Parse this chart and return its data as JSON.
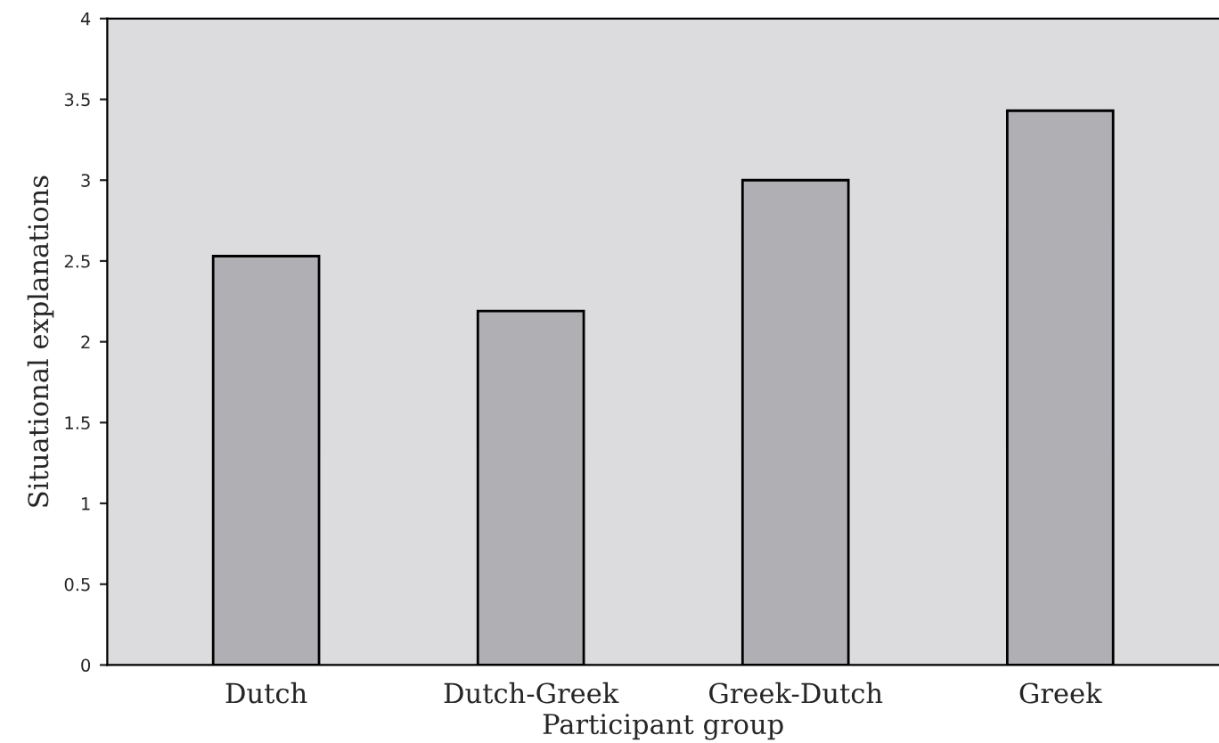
{
  "chart_data": {
    "type": "bar",
    "xlabel": "Participant group",
    "ylabel": "Situational explanations",
    "categories": [
      "Dutch",
      "Dutch-Greek",
      "Greek-Dutch",
      "Greek"
    ],
    "values": [
      2.53,
      2.19,
      3.0,
      3.43
    ],
    "color": "#b0b0b4",
    "ylim": [
      0,
      4
    ],
    "yticks": [
      0,
      0.5,
      1,
      1.5,
      2,
      2.5,
      3,
      3.5,
      4
    ],
    "grid": false,
    "legend": false
  }
}
